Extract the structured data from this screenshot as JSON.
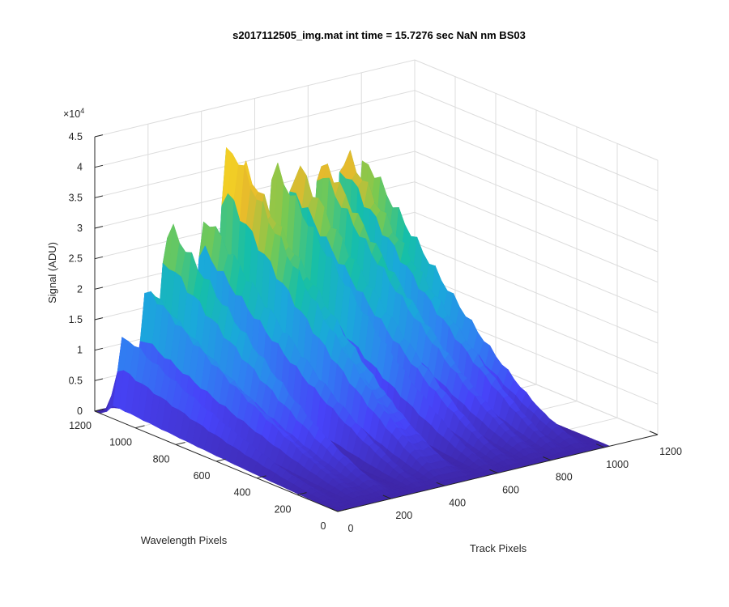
{
  "chart_data": {
    "type": "surface",
    "title": "s2017112505_img.mat int time = 15.7276 sec  NaN nm BS03",
    "xlabel": "Track Pixels",
    "ylabel": "Wavelength Pixels",
    "zlabel": "Signal (ADU)",
    "z_exponent_label": "×10",
    "z_exponent": "4",
    "xlim": [
      0,
      1200
    ],
    "ylim": [
      0,
      1200
    ],
    "zlim": [
      0,
      45000
    ],
    "x_ticks": [
      "0",
      "200",
      "400",
      "600",
      "800",
      "1000",
      "1200"
    ],
    "y_ticks": [
      "0",
      "200",
      "400",
      "600",
      "800",
      "1000",
      "1200"
    ],
    "z_ticks": [
      "0",
      "0.5",
      "1",
      "1.5",
      "2",
      "2.5",
      "3",
      "3.5",
      "4",
      "4.5"
    ],
    "grid": true,
    "colormap": [
      "#3e26a8",
      "#4743f8",
      "#2f82f1",
      "#1aa9da",
      "#16bfa8",
      "#7cc94f",
      "#e7ba2c",
      "#f9dc22"
    ],
    "tracks": [
      {
        "center": 35,
        "peak": 13000
      },
      {
        "center": 125,
        "peak": 20000
      },
      {
        "center": 205,
        "peak": 31000
      },
      {
        "center": 335,
        "peak": 32000
      },
      {
        "center": 420,
        "peak": 36000
      },
      {
        "center": 480,
        "peak": 35500
      },
      {
        "center": 595,
        "peak": 37500
      },
      {
        "center": 675,
        "peak": 36000
      },
      {
        "center": 775,
        "peak": 34000
      },
      {
        "center": 860,
        "peak": 37500
      },
      {
        "center": 935,
        "peak": 35000
      }
    ]
  }
}
